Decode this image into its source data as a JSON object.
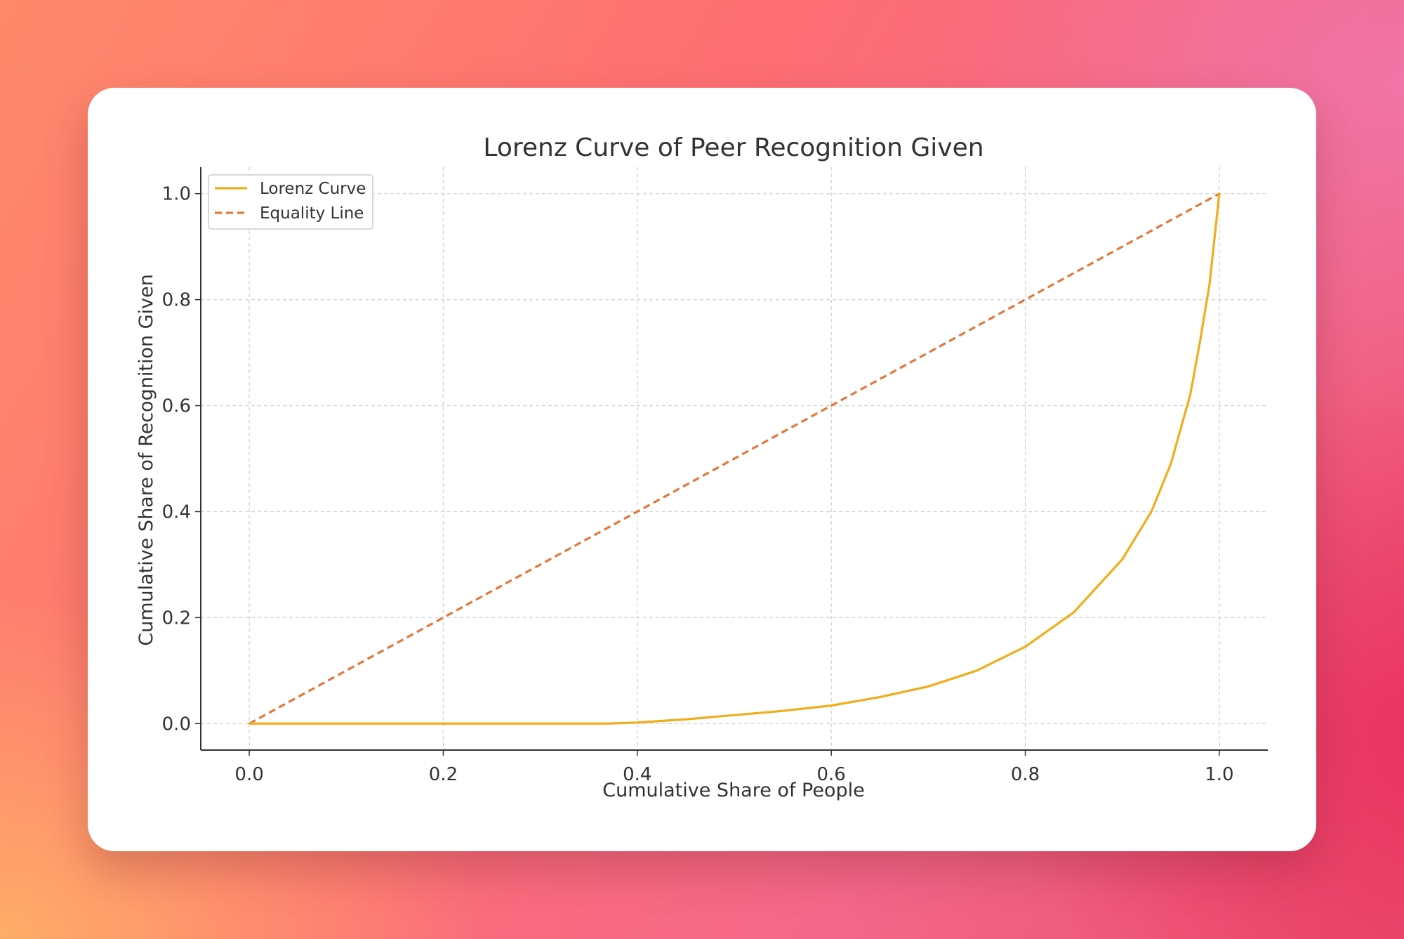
{
  "chart_data": {
    "type": "line",
    "title": "Lorenz Curve of Peer Recognition Given",
    "xlabel": "Cumulative Share of People",
    "ylabel": "Cumulative Share of Recognition Given",
    "xlim": [
      -0.05,
      1.05
    ],
    "ylim": [
      -0.05,
      1.05
    ],
    "x_ticks": [
      "0.0",
      "0.2",
      "0.4",
      "0.6",
      "0.8",
      "1.0"
    ],
    "y_ticks": [
      "0.0",
      "0.2",
      "0.4",
      "0.6",
      "0.8",
      "1.0"
    ],
    "grid": true,
    "legend_position": "top-left",
    "series": [
      {
        "name": "Lorenz Curve",
        "color": "#f0ad1c",
        "style": "solid",
        "x": [
          0.0,
          0.1,
          0.2,
          0.3,
          0.37,
          0.4,
          0.45,
          0.5,
          0.55,
          0.6,
          0.65,
          0.7,
          0.75,
          0.8,
          0.85,
          0.9,
          0.93,
          0.95,
          0.97,
          0.98,
          0.99,
          1.0
        ],
        "y": [
          0.0,
          0.0,
          0.0,
          0.0,
          0.0,
          0.002,
          0.008,
          0.016,
          0.024,
          0.034,
          0.05,
          0.07,
          0.1,
          0.145,
          0.21,
          0.31,
          0.4,
          0.49,
          0.62,
          0.72,
          0.83,
          1.0
        ]
      },
      {
        "name": "Equality Line",
        "color": "#e2783c",
        "style": "dashed",
        "x": [
          0.0,
          1.0
        ],
        "y": [
          0.0,
          1.0
        ]
      }
    ]
  }
}
